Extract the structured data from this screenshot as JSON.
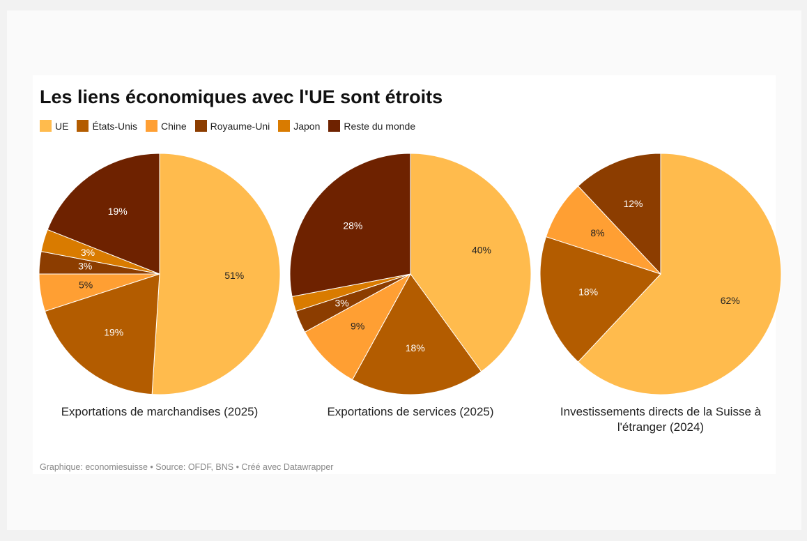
{
  "title": "Les liens économiques avec l'UE sont étroits",
  "source": "Graphique: economiesuisse • Source: OFDF, BNS • Créé avec Datawrapper",
  "chart_data": [
    {
      "type": "pie",
      "title": "Exportations de marchandises (2025)",
      "categories": [
        "UE",
        "États-Unis",
        "Chine",
        "Royaume-Uni",
        "Japon",
        "Reste du monde"
      ],
      "colors": [
        "#ffbb4d",
        "#b35c00",
        "#ff9f33",
        "#8c3d00",
        "#d97b00",
        "#6e2200"
      ],
      "values": [
        51,
        19,
        5,
        3,
        3,
        19
      ],
      "value_labels": [
        "51%",
        "19%",
        "5%",
        "3%",
        "3%",
        "19%"
      ]
    },
    {
      "type": "pie",
      "title": "Exportations de services (2025)",
      "categories": [
        "UE",
        "États-Unis",
        "Chine",
        "Royaume-Uni",
        "Japon",
        "Reste du monde"
      ],
      "colors": [
        "#ffbb4d",
        "#b35c00",
        "#ff9f33",
        "#8c3d00",
        "#d97b00",
        "#6e2200"
      ],
      "values": [
        40,
        18,
        9,
        3,
        2,
        28
      ],
      "value_labels": [
        "40%",
        "18%",
        "9%",
        "3%",
        null,
        "28%"
      ]
    },
    {
      "type": "pie",
      "title": "Investissements directs de la Suisse à l'étranger (2024)",
      "categories": [
        "UE",
        "États-Unis",
        "Chine",
        "Royaume-Uni"
      ],
      "colors": [
        "#ffbb4d",
        "#b35c00",
        "#ff9f33",
        "#8c3d00"
      ],
      "values": [
        62,
        18,
        8,
        12
      ],
      "value_labels": [
        "62%",
        "18%",
        "8%",
        "12%"
      ]
    }
  ]
}
